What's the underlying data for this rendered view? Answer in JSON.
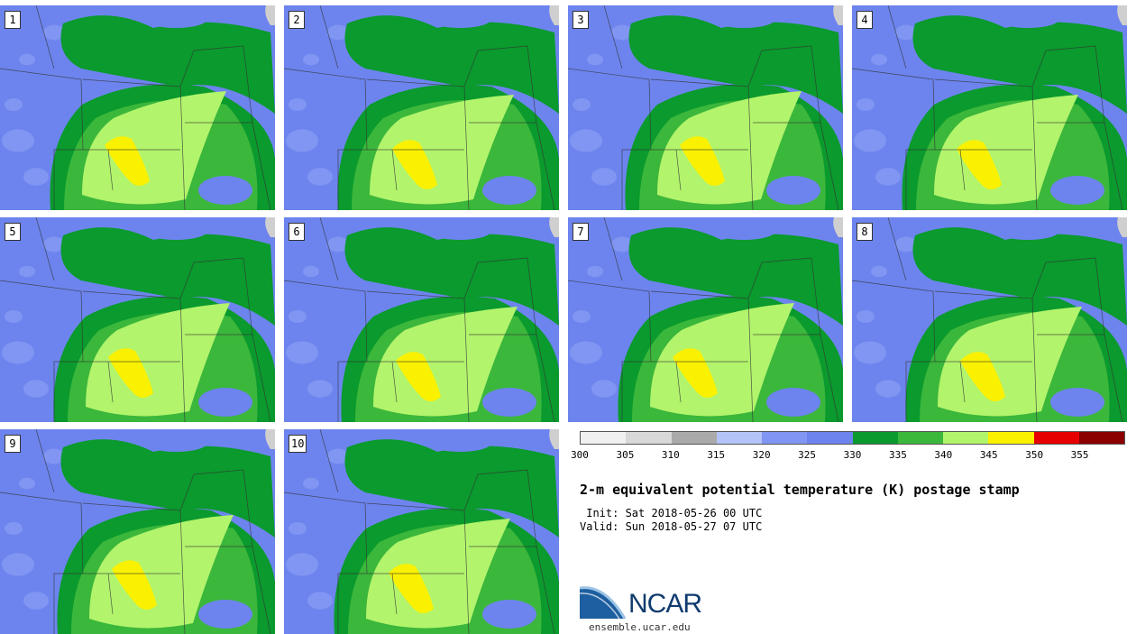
{
  "panels": [
    "1",
    "2",
    "3",
    "4",
    "5",
    "6",
    "7",
    "8",
    "9",
    "10"
  ],
  "colorbar": {
    "colors": [
      "#f0f0f0",
      "#d8d8d8",
      "#aaaaaa",
      "#b4c3f8",
      "#8096f2",
      "#6d84ee",
      "#0a9a2d",
      "#3bb73b",
      "#b2f46c",
      "#faf100",
      "#e60000",
      "#8b0000"
    ],
    "ticks": [
      "300",
      "305",
      "310",
      "315",
      "320",
      "325",
      "330",
      "335",
      "340",
      "345",
      "350",
      "355"
    ]
  },
  "title": "2-m equivalent potential temperature (K) postage stamp",
  "init": " Init: Sat 2018-05-26 00 UTC",
  "valid": "Valid: Sun 2018-05-27 07 UTC",
  "logo": {
    "text": "NCAR",
    "url": "ensemble.ucar.edu"
  }
}
